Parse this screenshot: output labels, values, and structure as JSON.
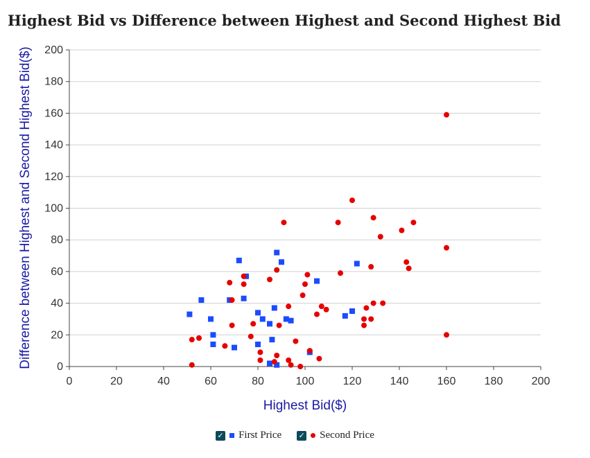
{
  "chart_data": {
    "type": "scatter",
    "title": "Highest Bid vs Difference between Highest and Second Highest Bid",
    "xlabel": "Highest Bid($)",
    "ylabel": "Difference between Highest and Second Highest Bid($)",
    "xlim": [
      0,
      200
    ],
    "ylim": [
      0,
      200
    ],
    "xticks": [
      0,
      20,
      40,
      60,
      80,
      100,
      120,
      140,
      160,
      180,
      200
    ],
    "yticks": [
      0,
      20,
      40,
      60,
      80,
      100,
      120,
      140,
      160,
      180,
      200
    ],
    "grid": "horizontal",
    "legend_position": "bottom",
    "series": [
      {
        "name": "First Price",
        "marker": "square",
        "color": "#1a4cff",
        "points": [
          [
            51,
            33
          ],
          [
            56,
            42
          ],
          [
            60,
            30
          ],
          [
            61,
            20
          ],
          [
            61,
            14
          ],
          [
            68,
            42
          ],
          [
            70,
            12
          ],
          [
            72,
            67
          ],
          [
            74,
            43
          ],
          [
            75,
            57
          ],
          [
            80,
            34
          ],
          [
            80,
            14
          ],
          [
            82,
            30
          ],
          [
            85,
            27
          ],
          [
            86,
            17
          ],
          [
            87,
            37
          ],
          [
            88,
            72
          ],
          [
            90,
            66
          ],
          [
            92,
            30
          ],
          [
            94,
            29
          ],
          [
            85,
            2
          ],
          [
            88,
            1
          ],
          [
            102,
            9
          ],
          [
            105,
            54
          ],
          [
            117,
            32
          ],
          [
            120,
            35
          ],
          [
            122,
            65
          ]
        ]
      },
      {
        "name": "Second Price",
        "marker": "circle",
        "color": "#e60000",
        "points": [
          [
            52,
            17
          ],
          [
            52,
            1
          ],
          [
            55,
            18
          ],
          [
            66,
            13
          ],
          [
            68,
            53
          ],
          [
            69,
            42
          ],
          [
            69,
            26
          ],
          [
            74,
            57
          ],
          [
            74,
            52
          ],
          [
            77,
            19
          ],
          [
            78,
            27
          ],
          [
            81,
            9
          ],
          [
            81,
            4
          ],
          [
            85,
            55
          ],
          [
            87,
            3
          ],
          [
            88,
            61
          ],
          [
            88,
            7
          ],
          [
            89,
            26
          ],
          [
            91,
            91
          ],
          [
            93,
            38
          ],
          [
            93,
            4
          ],
          [
            94,
            1
          ],
          [
            96,
            16
          ],
          [
            98,
            0
          ],
          [
            99,
            45
          ],
          [
            100,
            52
          ],
          [
            101,
            58
          ],
          [
            102,
            10
          ],
          [
            105,
            33
          ],
          [
            106,
            5
          ],
          [
            107,
            38
          ],
          [
            109,
            36
          ],
          [
            114,
            91
          ],
          [
            115,
            59
          ],
          [
            120,
            105
          ],
          [
            125,
            30
          ],
          [
            125,
            26
          ],
          [
            126,
            37
          ],
          [
            128,
            63
          ],
          [
            128,
            30
          ],
          [
            129,
            94
          ],
          [
            129,
            40
          ],
          [
            132,
            82
          ],
          [
            133,
            40
          ],
          [
            141,
            86
          ],
          [
            143,
            66
          ],
          [
            144,
            62
          ],
          [
            146,
            91
          ],
          [
            160,
            159
          ],
          [
            160,
            75
          ],
          [
            160,
            20
          ]
        ]
      }
    ]
  },
  "legend": {
    "first_label": "First Price",
    "second_label": "Second Price",
    "check_glyph": "✓"
  }
}
